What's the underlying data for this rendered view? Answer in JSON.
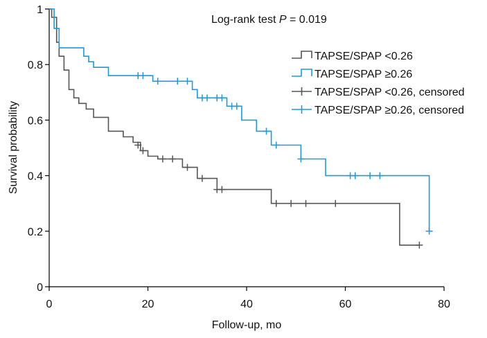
{
  "chart_data": {
    "type": "line",
    "chart_subtype": "kaplan-meier",
    "annotation": {
      "prefix": "Log-rank test ",
      "italic": "P",
      "suffix": " = 0.019"
    },
    "xlabel": "Follow-up, mo",
    "ylabel": "Survival probability",
    "xlim": [
      0,
      80
    ],
    "ylim": [
      0,
      1
    ],
    "xticks": [
      0,
      20,
      40,
      60,
      80
    ],
    "yticks": [
      0,
      0.2,
      0.4,
      0.6,
      0.8,
      1
    ],
    "ytick_labels": [
      "0",
      "0.2",
      "0.4",
      "0.6",
      "0.8",
      "1"
    ],
    "grid": false,
    "legend_position": "top-right",
    "legend": [
      {
        "label": "TAPSE/SPAP <0.26",
        "series": 0,
        "marker": "step"
      },
      {
        "label": "TAPSE/SPAP ≥0.26",
        "series": 1,
        "marker": "step"
      },
      {
        "label": "TAPSE/SPAP <0.26, censored",
        "series": 0,
        "marker": "cross"
      },
      {
        "label": "TAPSE/SPAP ≥0.26, censored",
        "series": 1,
        "marker": "cross"
      }
    ],
    "series": [
      {
        "color": "#555555",
        "steps": [
          [
            0,
            1
          ],
          [
            0.5,
            0.97
          ],
          [
            1.5,
            0.88
          ],
          [
            2,
            0.83
          ],
          [
            3,
            0.78
          ],
          [
            4,
            0.71
          ],
          [
            5,
            0.68
          ],
          [
            6,
            0.66
          ],
          [
            7.5,
            0.64
          ],
          [
            9,
            0.61
          ],
          [
            12,
            0.56
          ],
          [
            15,
            0.54
          ],
          [
            17,
            0.52
          ],
          [
            18.5,
            0.49
          ],
          [
            20,
            0.47
          ],
          [
            22,
            0.46
          ],
          [
            27,
            0.43
          ],
          [
            30,
            0.39
          ],
          [
            34,
            0.35
          ],
          [
            45,
            0.3
          ],
          [
            71,
            0.15
          ],
          [
            75,
            0.15
          ]
        ],
        "censored": [
          [
            18,
            0.51
          ],
          [
            19,
            0.49
          ],
          [
            23,
            0.46
          ],
          [
            25,
            0.46
          ],
          [
            28,
            0.43
          ],
          [
            31,
            0.39
          ],
          [
            34,
            0.35
          ],
          [
            35,
            0.35
          ],
          [
            46,
            0.3
          ],
          [
            49,
            0.3
          ],
          [
            52,
            0.3
          ],
          [
            58,
            0.3
          ],
          [
            75,
            0.15
          ]
        ]
      },
      {
        "color": "#1f9ad6",
        "steps": [
          [
            0,
            1
          ],
          [
            1,
            0.93
          ],
          [
            2,
            0.86
          ],
          [
            7,
            0.83
          ],
          [
            8,
            0.81
          ],
          [
            9,
            0.79
          ],
          [
            12,
            0.76
          ],
          [
            21,
            0.74
          ],
          [
            29,
            0.71
          ],
          [
            30,
            0.68
          ],
          [
            36,
            0.65
          ],
          [
            39,
            0.6
          ],
          [
            42,
            0.56
          ],
          [
            45,
            0.51
          ],
          [
            51,
            0.46
          ],
          [
            56,
            0.4
          ],
          [
            77,
            0.2
          ]
        ],
        "censored": [
          [
            18,
            0.76
          ],
          [
            19,
            0.76
          ],
          [
            22,
            0.74
          ],
          [
            26,
            0.74
          ],
          [
            28,
            0.74
          ],
          [
            31,
            0.68
          ],
          [
            32,
            0.68
          ],
          [
            34,
            0.68
          ],
          [
            35,
            0.68
          ],
          [
            37,
            0.65
          ],
          [
            38,
            0.65
          ],
          [
            44,
            0.56
          ],
          [
            46,
            0.51
          ],
          [
            51,
            0.46
          ],
          [
            61,
            0.4
          ],
          [
            62,
            0.4
          ],
          [
            65,
            0.4
          ],
          [
            67,
            0.4
          ],
          [
            77,
            0.2
          ]
        ]
      }
    ]
  }
}
